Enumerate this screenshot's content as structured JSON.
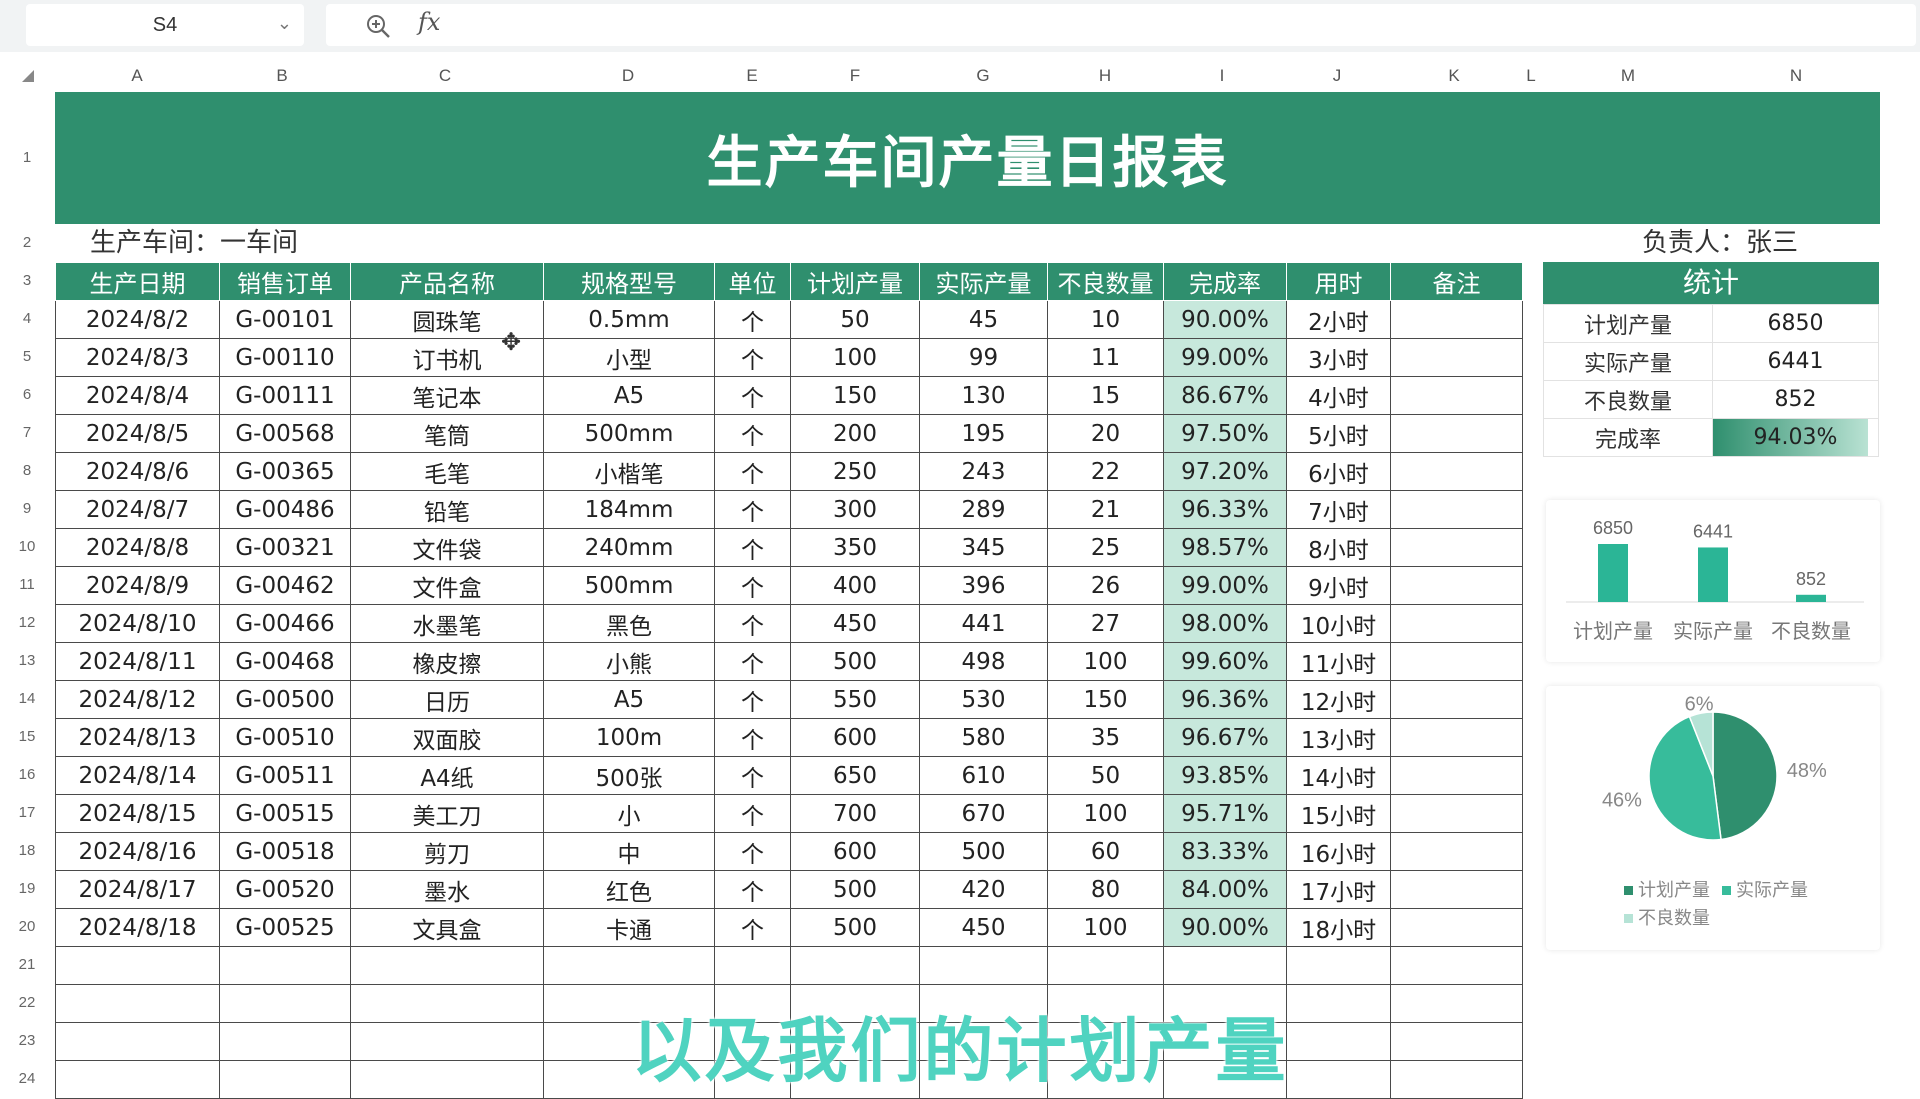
{
  "formula_bar": {
    "cell_ref": "S4",
    "fx_label": "fx",
    "formula": ""
  },
  "columns": [
    "A",
    "B",
    "C",
    "D",
    "E",
    "F",
    "G",
    "H",
    "I",
    "J",
    "K",
    "L",
    "M",
    "N"
  ],
  "rows": [
    "1",
    "2",
    "3",
    "4",
    "5",
    "6",
    "7",
    "8",
    "9",
    "10",
    "11",
    "12",
    "13",
    "14",
    "15",
    "16",
    "17",
    "18",
    "19",
    "20",
    "21",
    "22",
    "23",
    "24"
  ],
  "sheet": {
    "title": "生产车间产量日报表",
    "workshop": "生产车间：一车间",
    "manager": "负责人：张三",
    "headers": [
      "生产日期",
      "销售订单",
      "产品名称",
      "规格型号",
      "单位",
      "计划产量",
      "实际产量",
      "不良数量",
      "完成率",
      "用时",
      "备注"
    ],
    "records": [
      [
        "2024/8/2",
        "G-00101",
        "圆珠笔",
        "0.5mm",
        "个",
        "50",
        "45",
        "10",
        "90.00%",
        "2小时",
        ""
      ],
      [
        "2024/8/3",
        "G-00110",
        "订书机",
        "小型",
        "个",
        "100",
        "99",
        "11",
        "99.00%",
        "3小时",
        ""
      ],
      [
        "2024/8/4",
        "G-00111",
        "笔记本",
        "A5",
        "个",
        "150",
        "130",
        "15",
        "86.67%",
        "4小时",
        ""
      ],
      [
        "2024/8/5",
        "G-00568",
        "笔筒",
        "500mm",
        "个",
        "200",
        "195",
        "20",
        "97.50%",
        "5小时",
        ""
      ],
      [
        "2024/8/6",
        "G-00365",
        "毛笔",
        "小楷笔",
        "个",
        "250",
        "243",
        "22",
        "97.20%",
        "6小时",
        ""
      ],
      [
        "2024/8/7",
        "G-00486",
        "铅笔",
        "184mm",
        "个",
        "300",
        "289",
        "21",
        "96.33%",
        "7小时",
        ""
      ],
      [
        "2024/8/8",
        "G-00321",
        "文件袋",
        "240mm",
        "个",
        "350",
        "345",
        "25",
        "98.57%",
        "8小时",
        ""
      ],
      [
        "2024/8/9",
        "G-00462",
        "文件盒",
        "500mm",
        "个",
        "400",
        "396",
        "26",
        "99.00%",
        "9小时",
        ""
      ],
      [
        "2024/8/10",
        "G-00466",
        "水墨笔",
        "黑色",
        "个",
        "450",
        "441",
        "27",
        "98.00%",
        "10小时",
        ""
      ],
      [
        "2024/8/11",
        "G-00468",
        "橡皮擦",
        "小熊",
        "个",
        "500",
        "498",
        "100",
        "99.60%",
        "11小时",
        ""
      ],
      [
        "2024/8/12",
        "G-00500",
        "日历",
        "A5",
        "个",
        "550",
        "530",
        "150",
        "96.36%",
        "12小时",
        ""
      ],
      [
        "2024/8/13",
        "G-00510",
        "双面胶",
        "100m",
        "个",
        "600",
        "580",
        "35",
        "96.67%",
        "13小时",
        ""
      ],
      [
        "2024/8/14",
        "G-00511",
        "A4纸",
        "500张",
        "个",
        "650",
        "610",
        "50",
        "93.85%",
        "14小时",
        ""
      ],
      [
        "2024/8/15",
        "G-00515",
        "美工刀",
        "小",
        "个",
        "700",
        "670",
        "100",
        "95.71%",
        "15小时",
        ""
      ],
      [
        "2024/8/16",
        "G-00518",
        "剪刀",
        "中",
        "个",
        "600",
        "500",
        "60",
        "83.33%",
        "16小时",
        ""
      ],
      [
        "2024/8/17",
        "G-00520",
        "墨水",
        "红色",
        "个",
        "500",
        "420",
        "80",
        "84.00%",
        "17小时",
        ""
      ],
      [
        "2024/8/18",
        "G-00525",
        "文具盒",
        "卡通",
        "个",
        "500",
        "450",
        "100",
        "90.00%",
        "18小时",
        ""
      ]
    ],
    "empty_rows": 4
  },
  "stats": {
    "header": "统计",
    "items": [
      {
        "label": "计划产量",
        "value": "6850"
      },
      {
        "label": "实际产量",
        "value": "6441"
      },
      {
        "label": "不良数量",
        "value": "852"
      },
      {
        "label": "完成率",
        "value": "94.03%"
      }
    ],
    "completion_fraction": 0.9403
  },
  "chart_data": [
    {
      "type": "bar",
      "categories": [
        "计划产量",
        "实际产量",
        "不良数量"
      ],
      "values": [
        6850,
        6441,
        852
      ],
      "data_labels": [
        "6850",
        "6441",
        "852"
      ],
      "color": "#2bb596",
      "grid": false
    },
    {
      "type": "pie",
      "labels": [
        "计划产量",
        "实际产量",
        "不良数量"
      ],
      "values": [
        48,
        46,
        6
      ],
      "data_labels": [
        "48%",
        "46%",
        "6%"
      ],
      "colors": [
        "#2f8f6e",
        "#37bc9b",
        "#b6e3d6"
      ],
      "legend_position": "bottom"
    }
  ],
  "subtitle": "以及我们的计划产量"
}
